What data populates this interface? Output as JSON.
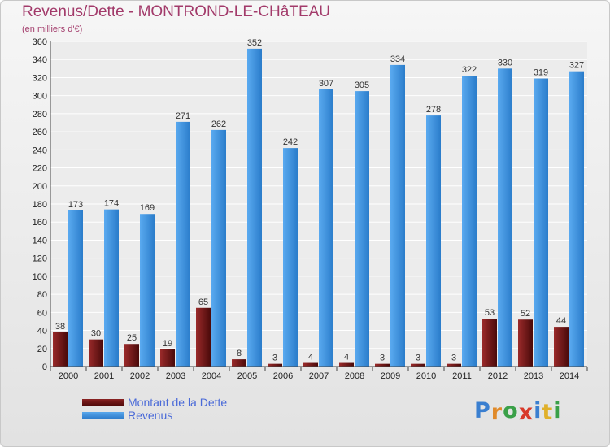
{
  "title": "Revenus/Dette - MONTROND-LE-CHâTEAU",
  "subtitle": "(en milliers d'€)",
  "logo": {
    "letters": [
      "P",
      "r",
      "o",
      "x",
      "i",
      "t",
      "i"
    ],
    "colors": [
      "#3a7fd0",
      "#e08a2a",
      "#3aa048",
      "#d83a2a",
      "#3a7fd0",
      "#e0b02a",
      "#3aa048"
    ]
  },
  "colors": {
    "dette": "#6e1414",
    "revenus": "#3a8fd8",
    "title": "#a23a6a",
    "legend_text": "#4a6ad8"
  },
  "chart_data": {
    "type": "bar",
    "title": "Revenus/Dette - MONTROND-LE-CHâTEAU",
    "subtitle": "(en milliers d'€)",
    "xlabel": "",
    "ylabel": "",
    "ylim": [
      0,
      360
    ],
    "yticks": [
      0,
      20,
      40,
      60,
      80,
      100,
      120,
      140,
      160,
      180,
      200,
      220,
      240,
      260,
      280,
      300,
      320,
      340,
      360
    ],
    "grid": true,
    "legend_position": "bottom-left",
    "categories": [
      "2000",
      "2001",
      "2002",
      "2003",
      "2004",
      "2005",
      "2006",
      "2007",
      "2008",
      "2009",
      "2010",
      "2011",
      "2012",
      "2013",
      "2014"
    ],
    "series": [
      {
        "name": "Montant de la Dette",
        "values": [
          38,
          30,
          25,
          19,
          65,
          8,
          3,
          4,
          4,
          3,
          3,
          3,
          53,
          52,
          44
        ]
      },
      {
        "name": "Revenus",
        "values": [
          173,
          174,
          169,
          271,
          262,
          352,
          242,
          307,
          305,
          334,
          278,
          322,
          330,
          319,
          327
        ]
      }
    ]
  }
}
